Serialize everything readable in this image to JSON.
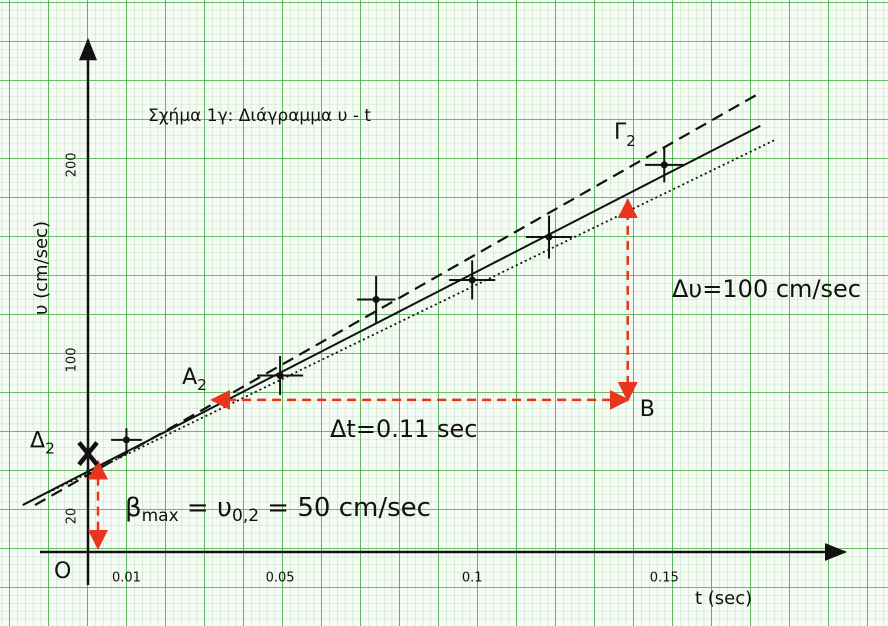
{
  "chart_data": {
    "type": "scatter",
    "title": "Σχήμα 1γ:  Διάγραμμα υ - t",
    "xlabel": "t (sec)",
    "ylabel": "υ (cm/sec)",
    "origin_label": "O",
    "xlim": [
      0,
      0.196
    ],
    "ylim": [
      0,
      263
    ],
    "xticks": [
      0.01,
      0.05,
      0.1,
      0.15
    ],
    "yticks": [
      20,
      100,
      200
    ],
    "points": {
      "x": [
        0.01,
        0.05,
        0.075,
        0.1,
        0.12,
        0.15
      ],
      "values": [
        59,
        92,
        131,
        141,
        163,
        200
      ],
      "xerr": [
        0.004,
        0.006,
        0.005,
        0.006,
        0.006,
        0.005
      ],
      "yerr": [
        6,
        10,
        12,
        10,
        11,
        9
      ],
      "color": "#111111"
    },
    "lines": [
      {
        "style": "solid",
        "x": [
          -0.017,
          0.175
        ],
        "values": [
          25.6,
          220
        ]
      },
      {
        "style": "dashed",
        "x": [
          -0.0138,
          0.175
        ],
        "values": [
          25.6,
          237
        ]
      },
      {
        "style": "dotted",
        "x": [
          -0.0104,
          0.179
        ],
        "values": [
          32,
          213
        ]
      }
    ],
    "construction_color": "#e8361e",
    "A": {
      "label": "A",
      "sub": "2",
      "x": 0.0323,
      "y": 79.5
    },
    "B": {
      "label": "B",
      "x": 0.1405,
      "y": 79.5,
      "top": 182
    },
    "D": {
      "label": "Δ",
      "sub": "2",
      "x": 0,
      "y": 52
    },
    "G": {
      "label": "Γ",
      "sub": "2"
    },
    "dt_label": "Δt=0.11 sec",
    "dv_label": "Δυ=100 cm/sec",
    "beta_label": {
      "base": "β",
      "sub": "max",
      "mid": " = υ",
      "sub2": "0,2",
      "rest": " = 50 cm/sec"
    }
  }
}
